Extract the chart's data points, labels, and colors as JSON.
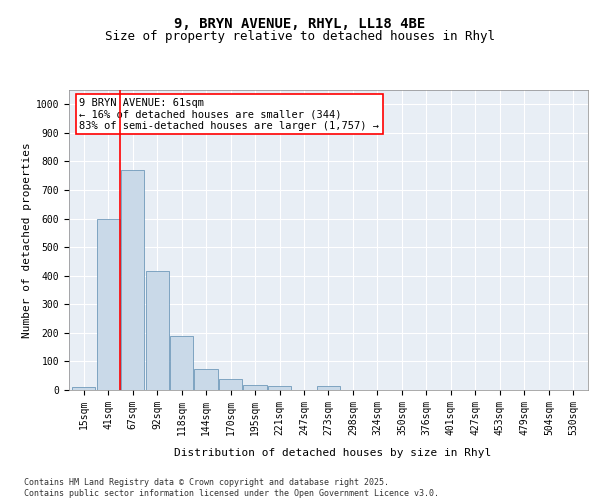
{
  "title_line1": "9, BRYN AVENUE, RHYL, LL18 4BE",
  "title_line2": "Size of property relative to detached houses in Rhyl",
  "xlabel": "Distribution of detached houses by size in Rhyl",
  "ylabel": "Number of detached properties",
  "categories": [
    "15sqm",
    "41sqm",
    "67sqm",
    "92sqm",
    "118sqm",
    "144sqm",
    "170sqm",
    "195sqm",
    "221sqm",
    "247sqm",
    "273sqm",
    "298sqm",
    "324sqm",
    "350sqm",
    "376sqm",
    "401sqm",
    "427sqm",
    "453sqm",
    "479sqm",
    "504sqm",
    "530sqm"
  ],
  "values": [
    10,
    600,
    770,
    415,
    190,
    75,
    38,
    18,
    13,
    0,
    13,
    0,
    0,
    0,
    0,
    0,
    0,
    0,
    0,
    0,
    0
  ],
  "bar_color": "#c9d9e8",
  "bar_edge_color": "#5a8ab0",
  "vline_x": 1.5,
  "vline_color": "red",
  "annotation_text": "9 BRYN AVENUE: 61sqm\n← 16% of detached houses are smaller (344)\n83% of semi-detached houses are larger (1,757) →",
  "annotation_box_color": "white",
  "annotation_box_edge_color": "red",
  "ylim": [
    0,
    1050
  ],
  "yticks": [
    0,
    100,
    200,
    300,
    400,
    500,
    600,
    700,
    800,
    900,
    1000
  ],
  "background_color": "#e8eef5",
  "grid_color": "white",
  "footnote": "Contains HM Land Registry data © Crown copyright and database right 2025.\nContains public sector information licensed under the Open Government Licence v3.0.",
  "title_fontsize": 10,
  "subtitle_fontsize": 9,
  "axis_label_fontsize": 8,
  "tick_fontsize": 7,
  "annotation_fontsize": 7.5,
  "footnote_fontsize": 6
}
